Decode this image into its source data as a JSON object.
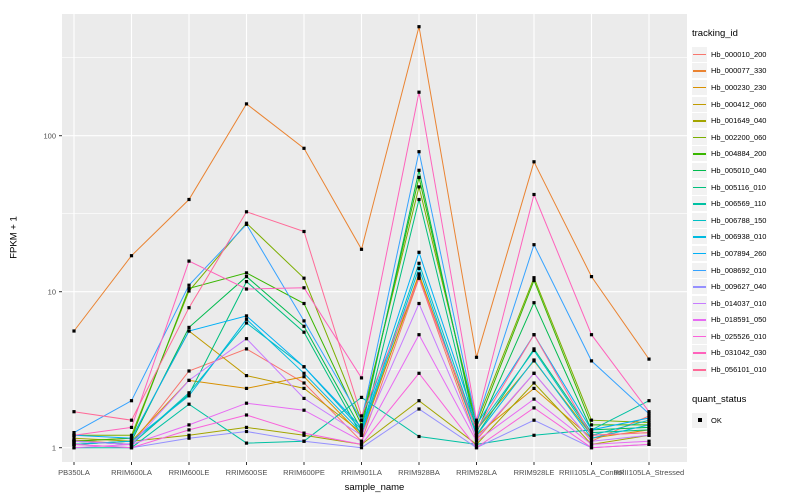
{
  "chart_data": {
    "type": "line",
    "title": "",
    "xlabel": "sample_name",
    "ylabel": "FPKM + 1",
    "y_scale": "log10",
    "y_ticks": [
      1,
      10,
      100
    ],
    "ylim": [
      0.9,
      600
    ],
    "grid": "on",
    "legend_position": "right",
    "legend_title": "tracking_id",
    "panel_color": "#EBEBEB",
    "gridline_color": "#FFFFFF",
    "point_color": "#000000",
    "categories": [
      "PB350LA",
      "RRIM600LA",
      "RRIM600LE",
      "RRIM600SE",
      "RRIM600PE",
      "RRIM901LA",
      "RRIM928BA",
      "RRIM928LA",
      "RRIM928LE",
      "RRII105LA_Control",
      "RRII105LA_Stressed"
    ],
    "series": [
      {
        "name": "Hb_000010_200",
        "color": "#F8766D",
        "values": [
          1.12,
          1.05,
          3.1,
          4.3,
          2.6,
          1.1,
          12.2,
          1.12,
          3.0,
          1.1,
          1.6
        ]
      },
      {
        "name": "Hb_000077_330",
        "color": "#EA8331",
        "values": [
          5.6,
          17,
          39,
          160,
          83,
          18.7,
          500,
          3.8,
          68,
          12.5,
          3.7
        ]
      },
      {
        "name": "Hb_000230_230",
        "color": "#D89000",
        "values": [
          1.05,
          1.1,
          2.7,
          2.4,
          2.85,
          1.2,
          13.0,
          1.2,
          2.4,
          1.15,
          1.3
        ]
      },
      {
        "name": "Hb_000412_060",
        "color": "#C09B00",
        "values": [
          1.1,
          1.15,
          5.6,
          2.9,
          2.4,
          1.25,
          12.5,
          1.3,
          3.6,
          1.2,
          1.25
        ]
      },
      {
        "name": "Hb_001649_040",
        "color": "#A3A500",
        "values": [
          1.15,
          1.1,
          1.2,
          1.35,
          1.2,
          1.05,
          2.0,
          1.05,
          2.6,
          1.05,
          1.2
        ]
      },
      {
        "name": "Hb_002200_060",
        "color": "#7CAE00",
        "values": [
          1.2,
          1.2,
          10.1,
          27.5,
          12.2,
          1.5,
          47,
          1.45,
          12.3,
          1.5,
          1.45
        ]
      },
      {
        "name": "Hb_004884_200",
        "color": "#39B600",
        "values": [
          1.1,
          1.15,
          10.5,
          13.2,
          8.4,
          1.4,
          54,
          1.35,
          11.8,
          1.4,
          1.4
        ]
      },
      {
        "name": "Hb_005010_040",
        "color": "#00BB4E",
        "values": [
          1.05,
          1.1,
          5.9,
          12.5,
          6.0,
          1.3,
          60,
          1.25,
          8.5,
          1.3,
          1.35
        ]
      },
      {
        "name": "Hb_005116_010",
        "color": "#00BF7D",
        "values": [
          1.1,
          1.05,
          2.2,
          11.6,
          5.5,
          1.2,
          39,
          1.2,
          4.3,
          1.25,
          1.3
        ]
      },
      {
        "name": "Hb_006569_110",
        "color": "#00C1A3",
        "values": [
          1.0,
          1.0,
          1.9,
          1.07,
          1.1,
          2.1,
          1.18,
          1.05,
          1.2,
          1.3,
          2.0
        ]
      },
      {
        "name": "Hb_006788_150",
        "color": "#00BFC4",
        "values": [
          1.1,
          1.05,
          2.25,
          6.3,
          3.3,
          1.3,
          15.2,
          1.3,
          4.2,
          1.2,
          1.5
        ]
      },
      {
        "name": "Hb_006938_010",
        "color": "#00BAE0",
        "values": [
          1.05,
          1.1,
          2.15,
          6.65,
          3.0,
          1.25,
          14.1,
          1.2,
          3.65,
          1.15,
          1.4
        ]
      },
      {
        "name": "Hb_007894_260",
        "color": "#00B0F6",
        "values": [
          1.2,
          1.15,
          5.6,
          7.0,
          3.3,
          1.35,
          17.9,
          1.4,
          5.3,
          1.3,
          1.55
        ]
      },
      {
        "name": "Hb_008692_010",
        "color": "#35A2FF",
        "values": [
          1.25,
          2.0,
          11.0,
          27.0,
          6.5,
          1.5,
          79,
          1.45,
          20,
          3.6,
          1.65
        ]
      },
      {
        "name": "Hb_009627_040",
        "color": "#9590FF",
        "values": [
          1.05,
          1.0,
          1.15,
          1.27,
          1.1,
          1.0,
          1.77,
          1.0,
          1.5,
          1.0,
          1.05
        ]
      },
      {
        "name": "Hb_014037_010",
        "color": "#C77CFF",
        "values": [
          1.1,
          1.05,
          2.7,
          5.0,
          2.07,
          1.2,
          8.4,
          1.15,
          3.0,
          1.1,
          1.2
        ]
      },
      {
        "name": "Hb_018591_050",
        "color": "#E76BF3",
        "values": [
          1.0,
          1.05,
          1.4,
          1.93,
          1.74,
          1.1,
          5.3,
          1.1,
          2.05,
          1.05,
          1.1
        ]
      },
      {
        "name": "Hb_025526_010",
        "color": "#FA62DB",
        "values": [
          1.05,
          1.0,
          1.3,
          1.62,
          1.24,
          1.05,
          3.0,
          1.0,
          1.8,
          1.0,
          1.05
        ]
      },
      {
        "name": "Hb_031042_030",
        "color": "#FF62BC",
        "values": [
          1.2,
          1.35,
          15.7,
          10.4,
          10.6,
          2.8,
          190,
          1.5,
          42,
          5.3,
          1.7
        ]
      },
      {
        "name": "Hb_056101_010",
        "color": "#FF6A98",
        "values": [
          1.7,
          1.5,
          7.9,
          32.5,
          24.3,
          1.6,
          12.2,
          1.3,
          5.3,
          1.2,
          1.25
        ]
      }
    ],
    "quant_legend": {
      "title": "quant_status",
      "items": [
        {
          "label": "OK",
          "shape": "square",
          "color": "#000000"
        }
      ]
    }
  }
}
